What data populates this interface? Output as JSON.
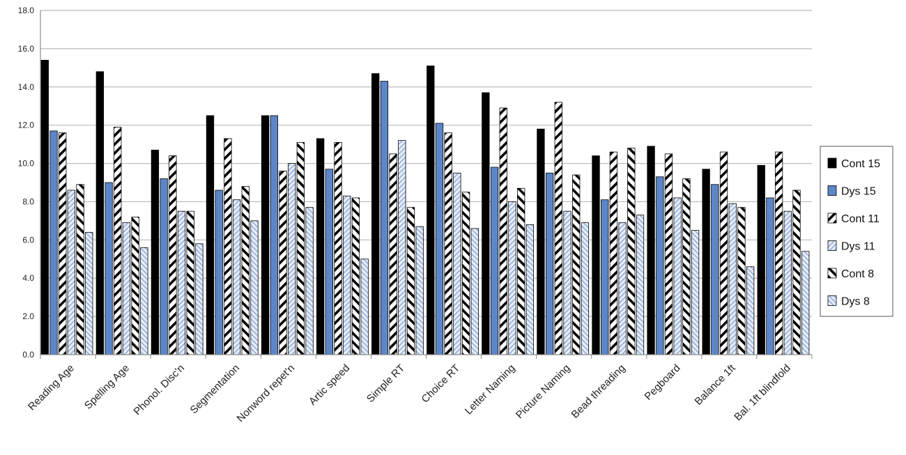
{
  "chart_data": {
    "type": "bar",
    "title": "",
    "xlabel": "",
    "ylabel": "",
    "ylim": [
      0,
      18
    ],
    "yticks": [
      "0.0",
      "2.0",
      "4.0",
      "6.0",
      "8.0",
      "10.0",
      "12.0",
      "14.0",
      "16.0",
      "18.0"
    ],
    "grid": true,
    "legend_position": "right",
    "categories": [
      "Reading Age",
      "Spelling Age",
      "Phonol. Disc'n",
      "Segmentation",
      "Nonword repet'n",
      "Artic speed",
      "Simple RT",
      "Choice RT",
      "Letter Naming",
      "Picture Naming",
      "Bead threading",
      "Pegboard",
      "Balance 1ft",
      "Bal. 1ft blindfold"
    ],
    "series": [
      {
        "name": "Cont 15",
        "pattern": "solid-black",
        "values": [
          15.4,
          14.8,
          10.7,
          12.5,
          12.5,
          11.3,
          14.7,
          15.1,
          13.7,
          11.8,
          10.4,
          10.9,
          9.7,
          9.9
        ]
      },
      {
        "name": "Dys 15",
        "pattern": "solid-blue",
        "values": [
          11.7,
          9.0,
          9.2,
          8.6,
          12.5,
          9.7,
          14.3,
          12.1,
          9.8,
          9.5,
          8.1,
          9.3,
          8.9,
          8.2
        ]
      },
      {
        "name": "Cont 11",
        "pattern": "bold-diagonal-black",
        "values": [
          11.6,
          11.9,
          10.4,
          11.3,
          9.6,
          11.1,
          10.5,
          11.6,
          12.9,
          13.2,
          10.6,
          10.5,
          10.6,
          10.6
        ]
      },
      {
        "name": "Dys 11",
        "pattern": "fine-diagonal-blue",
        "values": [
          8.6,
          6.9,
          7.5,
          8.1,
          10.0,
          8.3,
          11.2,
          9.5,
          8.0,
          7.5,
          6.9,
          8.2,
          7.9,
          7.5
        ]
      },
      {
        "name": "Cont 8",
        "pattern": "bold-diagonal-black-reverse",
        "values": [
          8.9,
          7.2,
          7.5,
          8.8,
          11.1,
          8.2,
          7.7,
          8.5,
          8.7,
          9.4,
          10.8,
          9.2,
          7.7,
          8.6
        ]
      },
      {
        "name": "Dys 8",
        "pattern": "fine-diagonal-blue-reverse",
        "values": [
          6.4,
          5.6,
          5.8,
          7.0,
          7.7,
          5.0,
          6.7,
          6.6,
          6.8,
          6.9,
          7.3,
          6.5,
          4.6,
          5.4
        ]
      }
    ]
  },
  "colors": {
    "cont15": "#000000",
    "dys15": "#5b86c8",
    "dys_hatch": "#a6bde3",
    "grid": "#b9b9b9",
    "axis": "#8a8a8a"
  }
}
